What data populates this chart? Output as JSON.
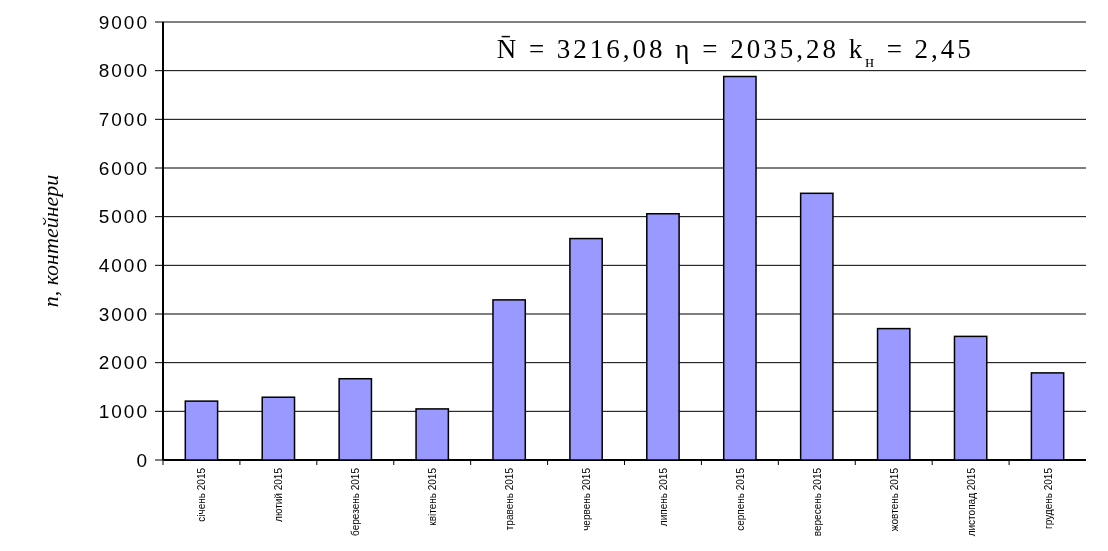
{
  "chart_data": {
    "type": "bar",
    "ylabel": "n, контейнери",
    "categories": [
      "січень 2015",
      "лютий 2015",
      "березень 2015",
      "квітень 2015",
      "травень 2015",
      "червень 2015",
      "липень 2015",
      "серпень 2015",
      "вересень 2015",
      "жовтень 2015",
      "листопад 2015",
      "грудень 2015"
    ],
    "values": [
      1210,
      1290,
      1670,
      1050,
      3290,
      4550,
      5060,
      7880,
      5480,
      2700,
      2540,
      1790
    ],
    "color": "#9999ff",
    "ylim": [
      0,
      9000
    ],
    "yticks": [
      0,
      1000,
      2000,
      3000,
      4000,
      5000,
      6000,
      7000,
      8000,
      9000
    ],
    "grid": "y",
    "annotations": [
      "N̄ = 3216,08   η = 2035,28   k$_{н}$ = 2,45"
    ]
  }
}
